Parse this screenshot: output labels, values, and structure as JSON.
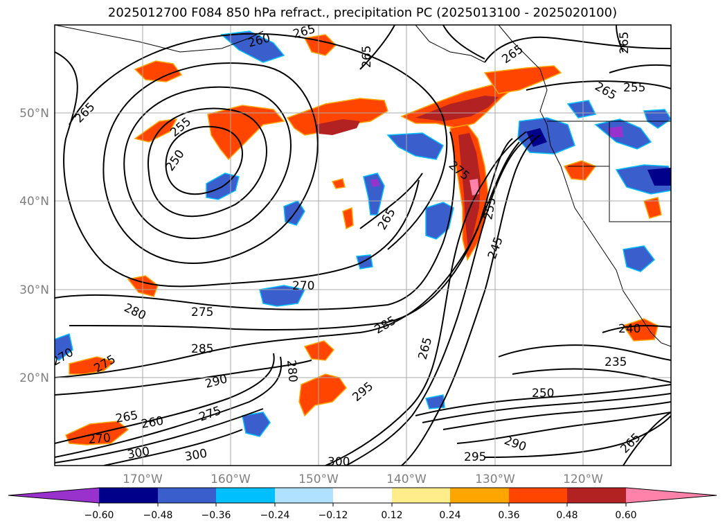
{
  "title": "2025012700 F084 850 hPa refract., precipitation PC (2025013100 - 2025020100)",
  "map": {
    "lon_range": [
      -180,
      -110
    ],
    "lat_range": [
      10,
      60
    ],
    "lat_labels": [
      "50°N",
      "40°N",
      "30°N",
      "20°N"
    ],
    "lat_values": [
      50,
      40,
      30,
      20
    ],
    "lon_labels": [
      "170°W",
      "160°W",
      "150°W",
      "140°W",
      "130°W",
      "120°W"
    ],
    "lon_values": [
      -170,
      -160,
      -150,
      -140,
      -130,
      -120
    ],
    "gridlines": true
  },
  "contour_labels": [
    "265",
    "260",
    "265",
    "265",
    "265",
    "265",
    "255",
    "265",
    "255",
    "250",
    "275",
    "265",
    "255",
    "245",
    "270",
    "280",
    "275",
    "285",
    "285",
    "290",
    "280",
    "295",
    "265",
    "270",
    "275",
    "260",
    "265",
    "270",
    "275",
    "300",
    "300",
    "300",
    "295",
    "290",
    "250",
    "235",
    "240",
    "265"
  ],
  "colorbar": {
    "ticks": [
      "−0.60",
      "−0.48",
      "−0.36",
      "−0.24",
      "−0.12",
      "0.12",
      "0.24",
      "0.36",
      "0.48",
      "0.60"
    ],
    "colors": [
      "#9932cc",
      "#00008b",
      "#3a5fcd",
      "#00bfff",
      "#b0e2ff",
      "#ffffff",
      "#ffec8b",
      "#ffa500",
      "#ff4500",
      "#b22222",
      "#ff82ab"
    ],
    "extend": "both"
  }
}
